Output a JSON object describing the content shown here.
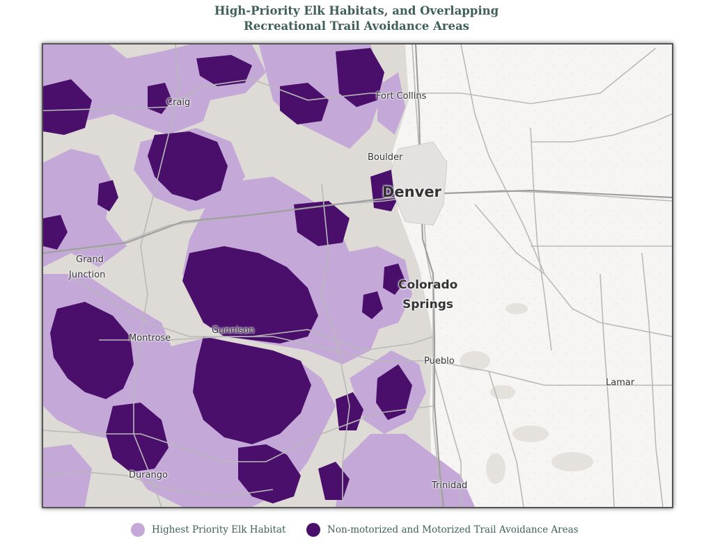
{
  "title": {
    "line1": "High-Priority Elk Habitats, and Overlapping",
    "line2": "Recreational Trail Avoidance Areas"
  },
  "cities": {
    "craig": "Craig",
    "fort_collins": "Fort Collins",
    "boulder": "Boulder",
    "denver": "Denver",
    "grand": "Grand",
    "junction": "Junction",
    "colorado": "Colorado",
    "springs": "Springs",
    "montrose": "Montrose",
    "gunnison": "Gunnison",
    "pueblo": "Pueblo",
    "lamar": "Lamar",
    "durango": "Durango",
    "trinidad": "Trinidad"
  },
  "legend": {
    "items": [
      {
        "label": "Highest Priority Elk Habitat",
        "color": "#c4a8d8"
      },
      {
        "label": "Non-motorized and Motorized Trail Avoidance Areas",
        "color": "#4a0f6b"
      }
    ]
  },
  "colors": {
    "habitat": "#c4a8d8",
    "avoidance": "#4a0f6b",
    "basemap": "#f6f5f3",
    "terrain": "#dedbd6",
    "roads": "#b7b7b7",
    "title": "#3e5f5a"
  }
}
